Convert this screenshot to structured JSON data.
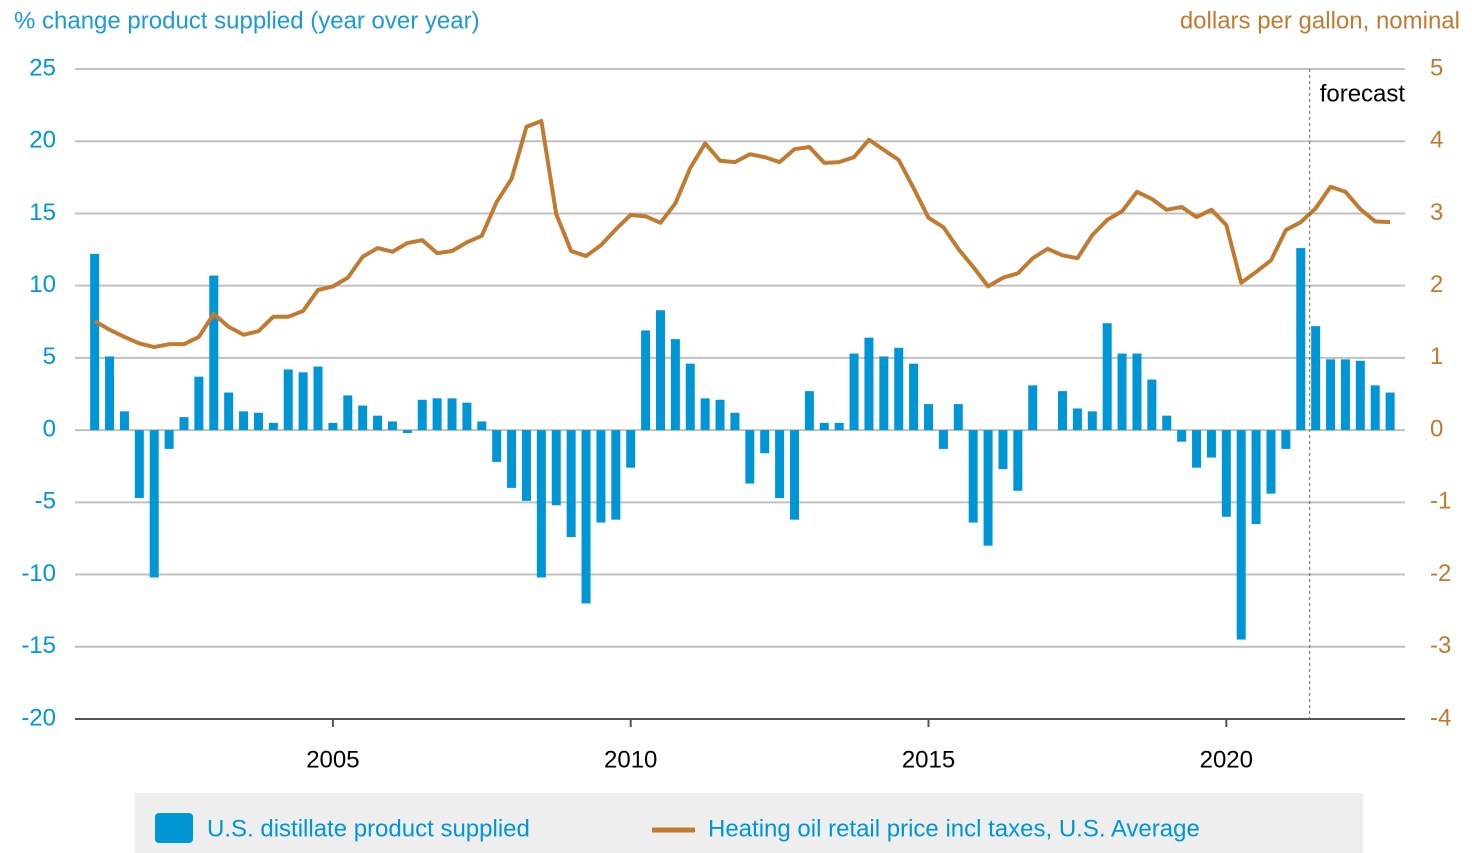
{
  "chart_data": {
    "type": "combo",
    "y_label": "% change product supplied (year over year)",
    "y2_label": "dollars per gallon, nominal",
    "x": [
      2001,
      2001.25,
      2001.5,
      2001.75,
      2002,
      2002.25,
      2002.5,
      2002.75,
      2003,
      2003.25,
      2003.5,
      2003.75,
      2004,
      2004.25,
      2004.5,
      2004.75,
      2005,
      2005.25,
      2005.5,
      2005.75,
      2006,
      2006.25,
      2006.5,
      2006.75,
      2007,
      2007.25,
      2007.5,
      2007.75,
      2008,
      2008.25,
      2008.5,
      2008.75,
      2009,
      2009.25,
      2009.5,
      2009.75,
      2010,
      2010.25,
      2010.5,
      2010.75,
      2011,
      2011.25,
      2011.5,
      2011.75,
      2012,
      2012.25,
      2012.5,
      2012.75,
      2013,
      2013.25,
      2013.5,
      2013.75,
      2014,
      2014.25,
      2014.5,
      2014.75,
      2015,
      2015.25,
      2015.5,
      2015.75,
      2016,
      2016.25,
      2016.5,
      2016.75,
      2017,
      2017.25,
      2017.5,
      2017.75,
      2018,
      2018.25,
      2018.5,
      2018.75,
      2019,
      2019.25,
      2019.5,
      2019.75,
      2020,
      2020.25,
      2020.5,
      2020.75,
      2021,
      2021.25,
      2021.5,
      2021.75,
      2022,
      2022.25,
      2022.5,
      2022.75
    ],
    "series": [
      {
        "name": "U.S. distillate product supplied",
        "type": "bar",
        "color": "#0096d6",
        "values": [
          12.2,
          5.1,
          1.3,
          -4.7,
          -10.2,
          -1.3,
          0.9,
          3.7,
          10.7,
          2.6,
          1.3,
          1.2,
          0.5,
          4.2,
          4.0,
          4.4,
          0.5,
          2.4,
          1.7,
          1.0,
          0.6,
          -0.2,
          2.1,
          2.2,
          2.2,
          1.9,
          0.6,
          -2.2,
          -4.0,
          -4.9,
          -10.2,
          -5.2,
          -7.4,
          -12.0,
          -6.4,
          -6.2,
          -2.6,
          6.9,
          8.3,
          6.3,
          4.6,
          2.2,
          2.1,
          1.2,
          -3.7,
          -1.6,
          -4.7,
          -6.2,
          2.7,
          0.5,
          0.5,
          5.3,
          6.4,
          5.1,
          5.7,
          4.6,
          1.8,
          -1.3,
          1.8,
          -6.4,
          -8.0,
          -2.7,
          -4.2,
          3.1,
          0,
          2.7,
          1.5,
          1.3,
          7.4,
          5.3,
          5.3,
          3.5,
          1.0,
          -0.8,
          -2.6,
          -1.9,
          -6.0,
          -14.5,
          -6.5,
          -4.4,
          -1.3,
          12.6,
          7.2,
          4.9,
          4.9,
          4.8,
          3.1,
          2.6
        ]
      },
      {
        "name": "Heating oil retail price incl taxes, U.S. Average",
        "type": "line",
        "axis": "y2",
        "color": "#c17b31",
        "values": [
          1.51,
          1.39,
          1.29,
          1.2,
          1.15,
          1.19,
          1.19,
          1.29,
          1.61,
          1.43,
          1.32,
          1.37,
          1.57,
          1.57,
          1.65,
          1.94,
          1.99,
          2.11,
          2.4,
          2.52,
          2.47,
          2.59,
          2.63,
          2.45,
          2.48,
          2.6,
          2.69,
          3.16,
          3.48,
          4.2,
          4.28,
          2.99,
          2.48,
          2.41,
          2.56,
          2.78,
          2.98,
          2.96,
          2.87,
          3.14,
          3.63,
          3.97,
          3.73,
          3.71,
          3.82,
          3.78,
          3.71,
          3.89,
          3.92,
          3.7,
          3.71,
          3.78,
          4.02,
          3.88,
          3.74,
          3.35,
          2.94,
          2.81,
          2.51,
          2.26,
          1.99,
          2.11,
          2.17,
          2.38,
          2.51,
          2.42,
          2.38,
          2.7,
          2.91,
          3.03,
          3.3,
          3.2,
          3.05,
          3.09,
          2.95,
          3.05,
          2.84,
          2.04,
          2.19,
          2.35,
          2.77,
          2.88,
          3.07,
          3.37,
          3.3,
          3.06,
          2.89,
          2.88
        ]
      }
    ],
    "xlim": [
      2000.67,
      2023
    ],
    "xticks": [
      2005,
      2010,
      2015,
      2020
    ],
    "ylim": [
      -20,
      25
    ],
    "yticks": [
      -20,
      -15,
      -10,
      -5,
      0,
      5,
      10,
      15,
      20,
      25
    ],
    "y2lim": [
      -4,
      5
    ],
    "y2ticks": [
      -4,
      -3,
      -2,
      -1,
      0,
      1,
      2,
      3,
      4,
      5
    ],
    "grid": true,
    "legend": "bottom",
    "annotations": [
      {
        "text": "forecast",
        "x": 2021.4
      }
    ]
  }
}
